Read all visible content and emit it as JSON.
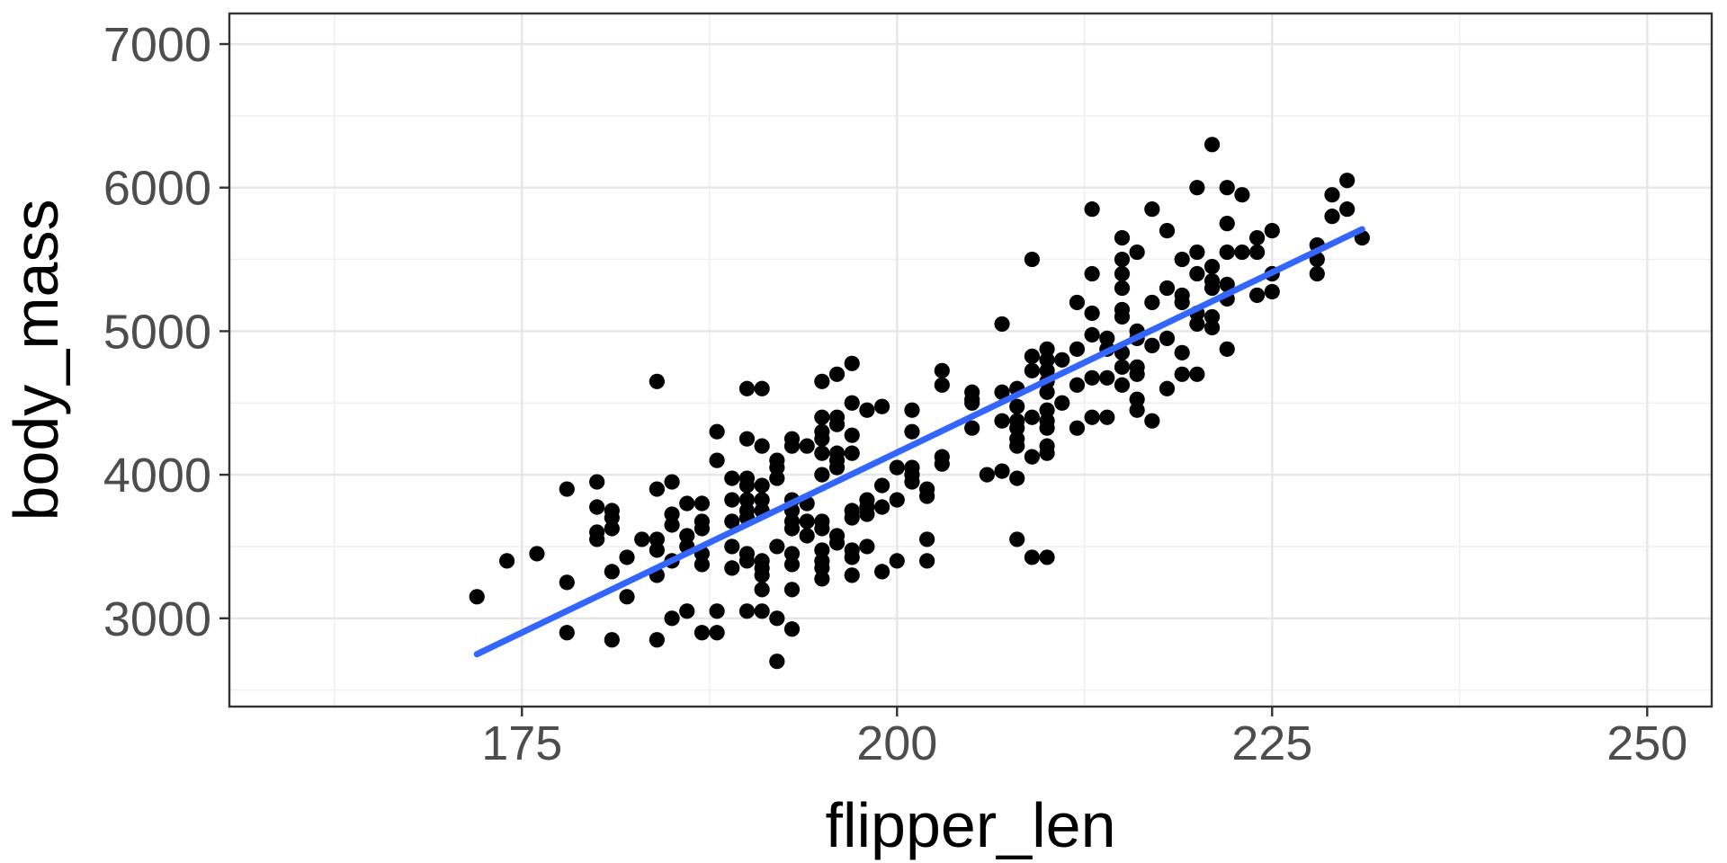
{
  "chart_data": {
    "type": "scatter",
    "title": "",
    "xlabel": "flipper_len",
    "ylabel": "body_mass",
    "x_ticks": [
      175,
      200,
      225,
      250
    ],
    "y_ticks": [
      3000,
      4000,
      5000,
      6000,
      7000
    ],
    "x_minor": [
      162.5,
      187.5,
      212.5,
      237.5
    ],
    "y_minor": [
      2500,
      3500,
      4500,
      5500,
      6500
    ],
    "xlim": [
      155.5,
      254.3
    ],
    "ylim": [
      2385,
      7213
    ],
    "grid": "major+minor",
    "legend": "none",
    "colors": {
      "point": "#000000",
      "smooth_line": "#3366FF",
      "grid_major": "#E6E6E6",
      "grid_minor": "#EFEFEF",
      "panel_border": "#333333",
      "tick_mark": "#333333",
      "tick_label": "#4D4D4D",
      "axis_title": "#000000",
      "background": "#FFFFFF"
    },
    "regression_line": {
      "x1": 172,
      "y1": 2750,
      "x2": 231,
      "y2": 5710
    },
    "points": [
      [
        172,
        3150
      ],
      [
        174,
        3400
      ],
      [
        176,
        3450
      ],
      [
        178,
        3900
      ],
      [
        178,
        3250
      ],
      [
        178,
        2900
      ],
      [
        180,
        3950
      ],
      [
        180,
        3775
      ],
      [
        180,
        3600
      ],
      [
        180,
        3550
      ],
      [
        181,
        3750
      ],
      [
        181,
        3700
      ],
      [
        181,
        3625
      ],
      [
        181,
        3325
      ],
      [
        181,
        2850
      ],
      [
        182,
        3425
      ],
      [
        182,
        3150
      ],
      [
        183,
        3550
      ],
      [
        184,
        4650
      ],
      [
        184,
        3900
      ],
      [
        184,
        3550
      ],
      [
        184,
        3475
      ],
      [
        184,
        3300
      ],
      [
        184,
        2850
      ],
      [
        185,
        3950
      ],
      [
        185,
        3725
      ],
      [
        185,
        3650
      ],
      [
        185,
        3400
      ],
      [
        185,
        3000
      ],
      [
        186,
        3800
      ],
      [
        186,
        3575
      ],
      [
        186,
        3500
      ],
      [
        186,
        3050
      ],
      [
        187,
        3800
      ],
      [
        187,
        3675
      ],
      [
        187,
        3625
      ],
      [
        187,
        3450
      ],
      [
        187,
        3375
      ],
      [
        187,
        2900
      ],
      [
        188,
        4300
      ],
      [
        188,
        4100
      ],
      [
        188,
        3050
      ],
      [
        188,
        2900
      ],
      [
        189,
        3975
      ],
      [
        189,
        3825
      ],
      [
        189,
        3675
      ],
      [
        189,
        3500
      ],
      [
        189,
        3350
      ],
      [
        190,
        4600
      ],
      [
        190,
        4250
      ],
      [
        190,
        3975
      ],
      [
        190,
        3925
      ],
      [
        190,
        3825
      ],
      [
        190,
        3750
      ],
      [
        190,
        3700
      ],
      [
        190,
        3450
      ],
      [
        190,
        3400
      ],
      [
        190,
        3050
      ],
      [
        191,
        4600
      ],
      [
        191,
        4200
      ],
      [
        191,
        3925
      ],
      [
        191,
        3825
      ],
      [
        191,
        3750
      ],
      [
        191,
        3400
      ],
      [
        191,
        3350
      ],
      [
        191,
        3300
      ],
      [
        191,
        3200
      ],
      [
        191,
        3050
      ],
      [
        192,
        4100
      ],
      [
        192,
        4050
      ],
      [
        192,
        3975
      ],
      [
        192,
        3500
      ],
      [
        192,
        3000
      ],
      [
        192,
        2700
      ],
      [
        193,
        4250
      ],
      [
        193,
        4200
      ],
      [
        193,
        3825
      ],
      [
        193,
        3750
      ],
      [
        193,
        3675
      ],
      [
        193,
        3625
      ],
      [
        193,
        3450
      ],
      [
        193,
        3375
      ],
      [
        193,
        3200
      ],
      [
        193,
        2925
      ],
      [
        194,
        4200
      ],
      [
        194,
        3800
      ],
      [
        194,
        3675
      ],
      [
        194,
        3575
      ],
      [
        195,
        4650
      ],
      [
        195,
        4400
      ],
      [
        195,
        4300
      ],
      [
        195,
        4250
      ],
      [
        195,
        4150
      ],
      [
        195,
        4000
      ],
      [
        195,
        3675
      ],
      [
        195,
        3625
      ],
      [
        195,
        3475
      ],
      [
        195,
        3400
      ],
      [
        195,
        3350
      ],
      [
        195,
        3275
      ],
      [
        196,
        4700
      ],
      [
        196,
        4400
      ],
      [
        196,
        4350
      ],
      [
        196,
        4150
      ],
      [
        196,
        4100
      ],
      [
        196,
        4050
      ],
      [
        196,
        3575
      ],
      [
        196,
        3525
      ],
      [
        197,
        4775
      ],
      [
        197,
        4500
      ],
      [
        197,
        4275
      ],
      [
        197,
        4150
      ],
      [
        197,
        3750
      ],
      [
        197,
        3700
      ],
      [
        197,
        3475
      ],
      [
        197,
        3425
      ],
      [
        197,
        3300
      ],
      [
        198,
        4450
      ],
      [
        198,
        3825
      ],
      [
        198,
        3775
      ],
      [
        198,
        3725
      ],
      [
        198,
        3500
      ],
      [
        199,
        4475
      ],
      [
        199,
        3925
      ],
      [
        199,
        3775
      ],
      [
        199,
        3325
      ],
      [
        200,
        4050
      ],
      [
        200,
        3825
      ],
      [
        200,
        3400
      ],
      [
        201,
        4450
      ],
      [
        201,
        4300
      ],
      [
        201,
        4050
      ],
      [
        201,
        4000
      ],
      [
        201,
        3950
      ],
      [
        202,
        3900
      ],
      [
        202,
        3850
      ],
      [
        202,
        3550
      ],
      [
        202,
        3400
      ],
      [
        203,
        4725
      ],
      [
        203,
        4625
      ],
      [
        203,
        4125
      ],
      [
        203,
        4075
      ],
      [
        205,
        4575
      ],
      [
        205,
        4525
      ],
      [
        205,
        4500
      ],
      [
        205,
        4325
      ],
      [
        206,
        4000
      ],
      [
        207,
        5050
      ],
      [
        207,
        4575
      ],
      [
        207,
        4375
      ],
      [
        207,
        4025
      ],
      [
        208,
        4600
      ],
      [
        208,
        4475
      ],
      [
        208,
        4375
      ],
      [
        208,
        4325
      ],
      [
        208,
        4250
      ],
      [
        208,
        4200
      ],
      [
        208,
        3975
      ],
      [
        208,
        3550
      ],
      [
        209,
        5500
      ],
      [
        209,
        4825
      ],
      [
        209,
        4725
      ],
      [
        209,
        4400
      ],
      [
        209,
        4125
      ],
      [
        209,
        3425
      ],
      [
        210,
        4875
      ],
      [
        210,
        4800
      ],
      [
        210,
        4725
      ],
      [
        210,
        4650
      ],
      [
        210,
        4575
      ],
      [
        210,
        4450
      ],
      [
        210,
        4375
      ],
      [
        210,
        4325
      ],
      [
        210,
        4200
      ],
      [
        210,
        4150
      ],
      [
        210,
        3425
      ],
      [
        211,
        4800
      ],
      [
        211,
        4500
      ],
      [
        212,
        5200
      ],
      [
        212,
        4875
      ],
      [
        212,
        4625
      ],
      [
        212,
        4325
      ],
      [
        213,
        5850
      ],
      [
        213,
        5400
      ],
      [
        213,
        5125
      ],
      [
        213,
        4975
      ],
      [
        213,
        4675
      ],
      [
        213,
        4400
      ],
      [
        214,
        4950
      ],
      [
        214,
        4875
      ],
      [
        214,
        4675
      ],
      [
        214,
        4400
      ],
      [
        215,
        5650
      ],
      [
        215,
        5500
      ],
      [
        215,
        5400
      ],
      [
        215,
        5300
      ],
      [
        215,
        5150
      ],
      [
        215,
        5100
      ],
      [
        215,
        4850
      ],
      [
        215,
        4750
      ],
      [
        215,
        4625
      ],
      [
        216,
        5550
      ],
      [
        216,
        5000
      ],
      [
        216,
        4950
      ],
      [
        216,
        4750
      ],
      [
        216,
        4700
      ],
      [
        216,
        4525
      ],
      [
        216,
        4450
      ],
      [
        217,
        5850
      ],
      [
        217,
        5200
      ],
      [
        217,
        4900
      ],
      [
        217,
        4375
      ],
      [
        218,
        5700
      ],
      [
        218,
        5300
      ],
      [
        218,
        4950
      ],
      [
        218,
        4600
      ],
      [
        219,
        5500
      ],
      [
        219,
        5250
      ],
      [
        219,
        5200
      ],
      [
        219,
        4850
      ],
      [
        219,
        4700
      ],
      [
        220,
        6000
      ],
      [
        220,
        5550
      ],
      [
        220,
        5400
      ],
      [
        220,
        5125
      ],
      [
        220,
        5050
      ],
      [
        220,
        4700
      ],
      [
        221,
        6300
      ],
      [
        221,
        5450
      ],
      [
        221,
        5350
      ],
      [
        221,
        5300
      ],
      [
        221,
        5100
      ],
      [
        221,
        5025
      ],
      [
        222,
        6000
      ],
      [
        222,
        5750
      ],
      [
        222,
        5550
      ],
      [
        222,
        5325
      ],
      [
        222,
        5225
      ],
      [
        222,
        4875
      ],
      [
        223,
        5950
      ],
      [
        223,
        5550
      ],
      [
        224,
        5650
      ],
      [
        224,
        5550
      ],
      [
        224,
        5250
      ],
      [
        225,
        5700
      ],
      [
        225,
        5400
      ],
      [
        225,
        5275
      ],
      [
        228,
        5600
      ],
      [
        228,
        5500
      ],
      [
        228,
        5400
      ],
      [
        229,
        5950
      ],
      [
        229,
        5800
      ],
      [
        230,
        6050
      ],
      [
        230,
        5850
      ],
      [
        231,
        5650
      ]
    ]
  }
}
